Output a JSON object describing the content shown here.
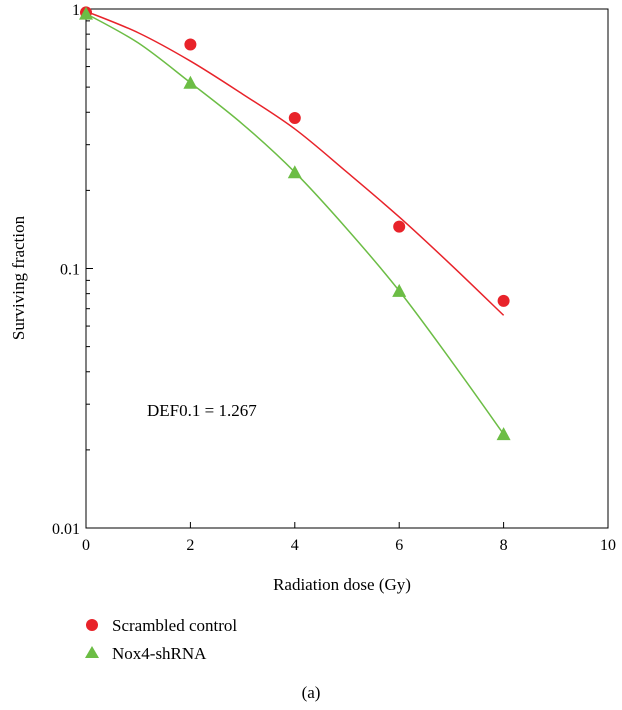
{
  "chart_data": {
    "type": "scatter",
    "xlabel": "Radiation dose (Gy)",
    "ylabel": "Surviving fraction",
    "x_ticks": [
      "0",
      "2",
      "4",
      "6",
      "8",
      "10"
    ],
    "y_ticks": [
      "1",
      "0.1",
      "0.01"
    ],
    "xlim": [
      0,
      10
    ],
    "ylim": [
      0.01,
      1
    ],
    "y_scale": "log",
    "grid": false,
    "legend_position": "bottom-left",
    "annotation": "DEF0.1 = 1.267",
    "panel_label": "(a)",
    "series": [
      {
        "name": "Scrambled control",
        "marker": "circle",
        "color": "#e8232a",
        "x": [
          0,
          2,
          4,
          6,
          8
        ],
        "y": [
          0.97,
          0.73,
          0.38,
          0.145,
          0.075
        ],
        "fit": [
          [
            0,
            0.98
          ],
          [
            1,
            0.81
          ],
          [
            2,
            0.63
          ],
          [
            3,
            0.47
          ],
          [
            4,
            0.345
          ],
          [
            5,
            0.235
          ],
          [
            6,
            0.158
          ],
          [
            7,
            0.103
          ],
          [
            8,
            0.066
          ]
        ]
      },
      {
        "name": "Nox4-shRNA",
        "marker": "triangle",
        "color": "#6cbd45",
        "x": [
          0,
          2,
          4,
          6,
          8
        ],
        "y": [
          0.96,
          0.52,
          0.235,
          0.082,
          0.023
        ],
        "fit": [
          [
            0,
            0.96
          ],
          [
            1,
            0.74
          ],
          [
            2,
            0.52
          ],
          [
            3,
            0.36
          ],
          [
            4,
            0.235
          ],
          [
            5,
            0.142
          ],
          [
            6,
            0.082
          ],
          [
            7,
            0.044
          ],
          [
            8,
            0.023
          ]
        ]
      }
    ]
  }
}
